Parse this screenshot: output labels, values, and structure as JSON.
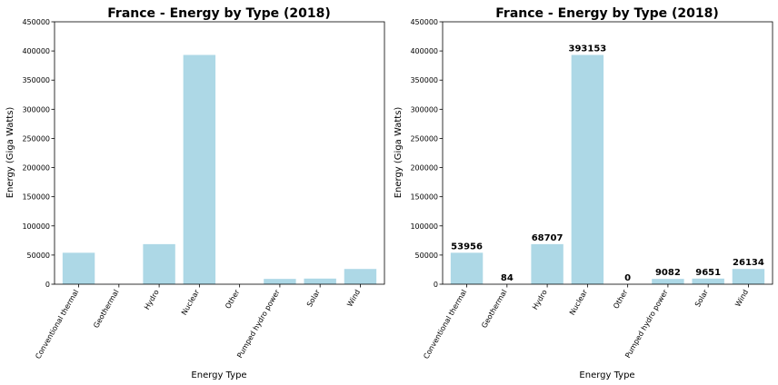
{
  "chart_data": [
    {
      "type": "bar",
      "title": "France - Energy by Type (2018)",
      "xlabel": "Energy Type",
      "ylabel": "Energy (Giga Watts)",
      "categories": [
        "Conventional thermal",
        "Geothermal",
        "Hydro",
        "Nuclear",
        "Other",
        "Pumped hydro power",
        "Solar",
        "Wind"
      ],
      "values": [
        53956,
        84,
        68707,
        393153,
        0,
        9082,
        9651,
        26134
      ],
      "ylim": [
        0,
        450000
      ],
      "yticks": [
        "0",
        "50000",
        "100000",
        "150000",
        "200000",
        "250000",
        "300000",
        "350000",
        "400000",
        "450000"
      ],
      "data_labels": false,
      "bar_color": "#add8e6",
      "grid": false
    },
    {
      "type": "bar",
      "title": "France - Energy by Type (2018)",
      "xlabel": "Energy Type",
      "ylabel": "Energy (Giga Watts)",
      "categories": [
        "Conventional thermal",
        "Geothermal",
        "Hydro",
        "Nuclear",
        "Other",
        "Pumped hydro power",
        "Solar",
        "Wind"
      ],
      "values": [
        53956,
        84,
        68707,
        393153,
        0,
        9082,
        9651,
        26134
      ],
      "ylim": [
        0,
        450000
      ],
      "yticks": [
        "0",
        "50000",
        "100000",
        "150000",
        "200000",
        "250000",
        "300000",
        "350000",
        "400000",
        "450000"
      ],
      "data_labels": true,
      "bar_color": "#add8e6",
      "grid": false
    }
  ]
}
